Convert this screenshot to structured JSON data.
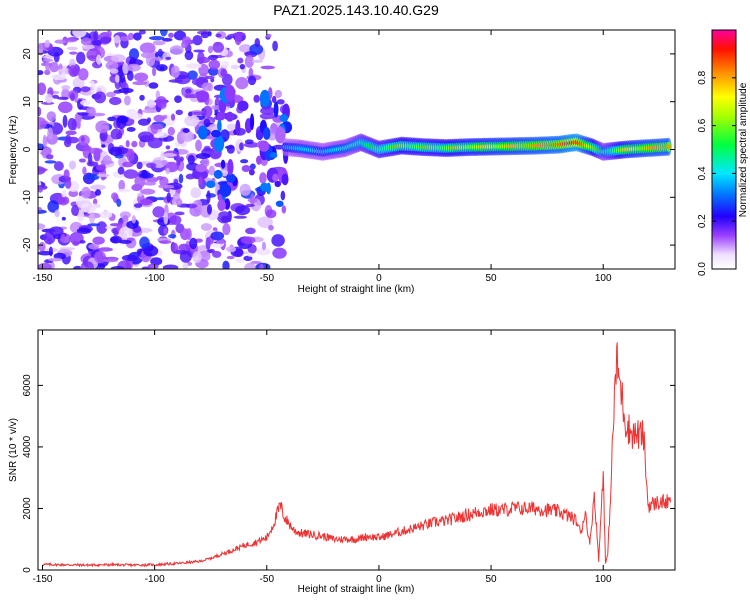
{
  "title": "PAZ1.2025.143.10.40.G29",
  "chart_data": [
    {
      "type": "heatmap",
      "xlabel": "Height of straight line (km)",
      "ylabel": "Frequency (Hz)",
      "xlim": [
        -152,
        132
      ],
      "ylim": [
        -25,
        25
      ],
      "x_ticks": [
        -150,
        -100,
        -50,
        0,
        50,
        100
      ],
      "x_tick_labels": [
        "-150",
        "-100",
        "-50",
        "0",
        "50",
        "100"
      ],
      "y_ticks": [
        20,
        10,
        0,
        -10,
        -20
      ],
      "y_tick_labels": [
        "20",
        "10",
        "0",
        "-10",
        "-20"
      ],
      "colorbar": {
        "label": "Normalized spectral amplitude",
        "range": [
          0,
          1
        ],
        "ticks": [
          0.0,
          0.2,
          0.4,
          0.6,
          0.8
        ],
        "tick_labels": [
          "0.0",
          "0.2",
          "0.4",
          "0.6",
          "0.8"
        ],
        "colormap": [
          "#e8d8ff",
          "#9a40ff",
          "#5500ff",
          "#0000ff",
          "#00c8ff",
          "#00ff00",
          "#ffff00",
          "#ff8000",
          "#ff0000",
          "#ff00a0"
        ]
      },
      "ridge": [
        {
          "x": -42,
          "f": 0.5,
          "a": 0.35
        },
        {
          "x": -35,
          "f": 0.2,
          "a": 0.4
        },
        {
          "x": -25,
          "f": -0.5,
          "a": 0.38
        },
        {
          "x": -15,
          "f": 0.3,
          "a": 0.42
        },
        {
          "x": -8,
          "f": 1.5,
          "a": 0.5
        },
        {
          "x": 0,
          "f": 0.0,
          "a": 0.55
        },
        {
          "x": 10,
          "f": 0.8,
          "a": 0.62
        },
        {
          "x": 20,
          "f": 0.5,
          "a": 0.6
        },
        {
          "x": 30,
          "f": 0.3,
          "a": 0.62
        },
        {
          "x": 40,
          "f": 0.5,
          "a": 0.68
        },
        {
          "x": 50,
          "f": 0.6,
          "a": 0.72
        },
        {
          "x": 60,
          "f": 0.7,
          "a": 0.76
        },
        {
          "x": 70,
          "f": 0.8,
          "a": 0.8
        },
        {
          "x": 80,
          "f": 1.0,
          "a": 0.85
        },
        {
          "x": 88,
          "f": 1.5,
          "a": 0.95
        },
        {
          "x": 95,
          "f": 0.5,
          "a": 0.65
        },
        {
          "x": 100,
          "f": -0.5,
          "a": 0.45
        },
        {
          "x": 110,
          "f": 0.0,
          "a": 0.7
        },
        {
          "x": 120,
          "f": 0.3,
          "a": 0.78
        },
        {
          "x": 130,
          "f": 0.6,
          "a": 0.82
        }
      ]
    },
    {
      "type": "line",
      "xlabel": "Height of straight line (km)",
      "ylabel": "SNR (10 * v/v)",
      "xlim": [
        -152,
        132
      ],
      "ylim": [
        0,
        7800
      ],
      "x_ticks": [
        -150,
        -100,
        -50,
        0,
        50,
        100
      ],
      "x_tick_labels": [
        "-150",
        "-100",
        "-50",
        "0",
        "50",
        "100"
      ],
      "y_ticks": [
        0,
        2000,
        4000,
        6000
      ],
      "y_tick_labels": [
        "0",
        "2000",
        "4000",
        "6000"
      ],
      "color": "#ee3333",
      "series": [
        {
          "x": [
            -150,
            -140,
            -130,
            -120,
            -110,
            -100,
            -90,
            -80,
            -75,
            -70,
            -65,
            -60,
            -55,
            -50,
            -47,
            -44,
            -42,
            -40,
            -38,
            -35,
            -30,
            -25,
            -20,
            -15,
            -10,
            -5,
            0,
            5,
            10,
            15,
            20,
            25,
            30,
            35,
            40,
            45,
            50,
            55,
            60,
            65,
            70,
            75,
            80,
            85,
            88,
            90,
            92,
            94,
            96,
            98,
            100,
            101,
            102,
            103,
            104,
            105,
            106,
            108,
            110,
            112,
            114,
            116,
            118,
            120,
            125,
            130
          ],
          "y": [
            180,
            170,
            160,
            170,
            160,
            170,
            210,
            280,
            380,
            520,
            650,
            800,
            900,
            1050,
            1500,
            2100,
            1700,
            1500,
            1300,
            1200,
            1150,
            1100,
            1000,
            1000,
            1000,
            1100,
            1050,
            1150,
            1250,
            1350,
            1450,
            1550,
            1600,
            1700,
            1800,
            1900,
            1950,
            1950,
            2000,
            2000,
            2000,
            1950,
            1900,
            1750,
            1600,
            1200,
            1900,
            800,
            2500,
            300,
            3300,
            200,
            500,
            2000,
            3800,
            5600,
            6800,
            5800,
            4800,
            4500,
            4400,
            4400,
            4350,
            2100,
            2200,
            2200
          ]
        }
      ]
    }
  ]
}
